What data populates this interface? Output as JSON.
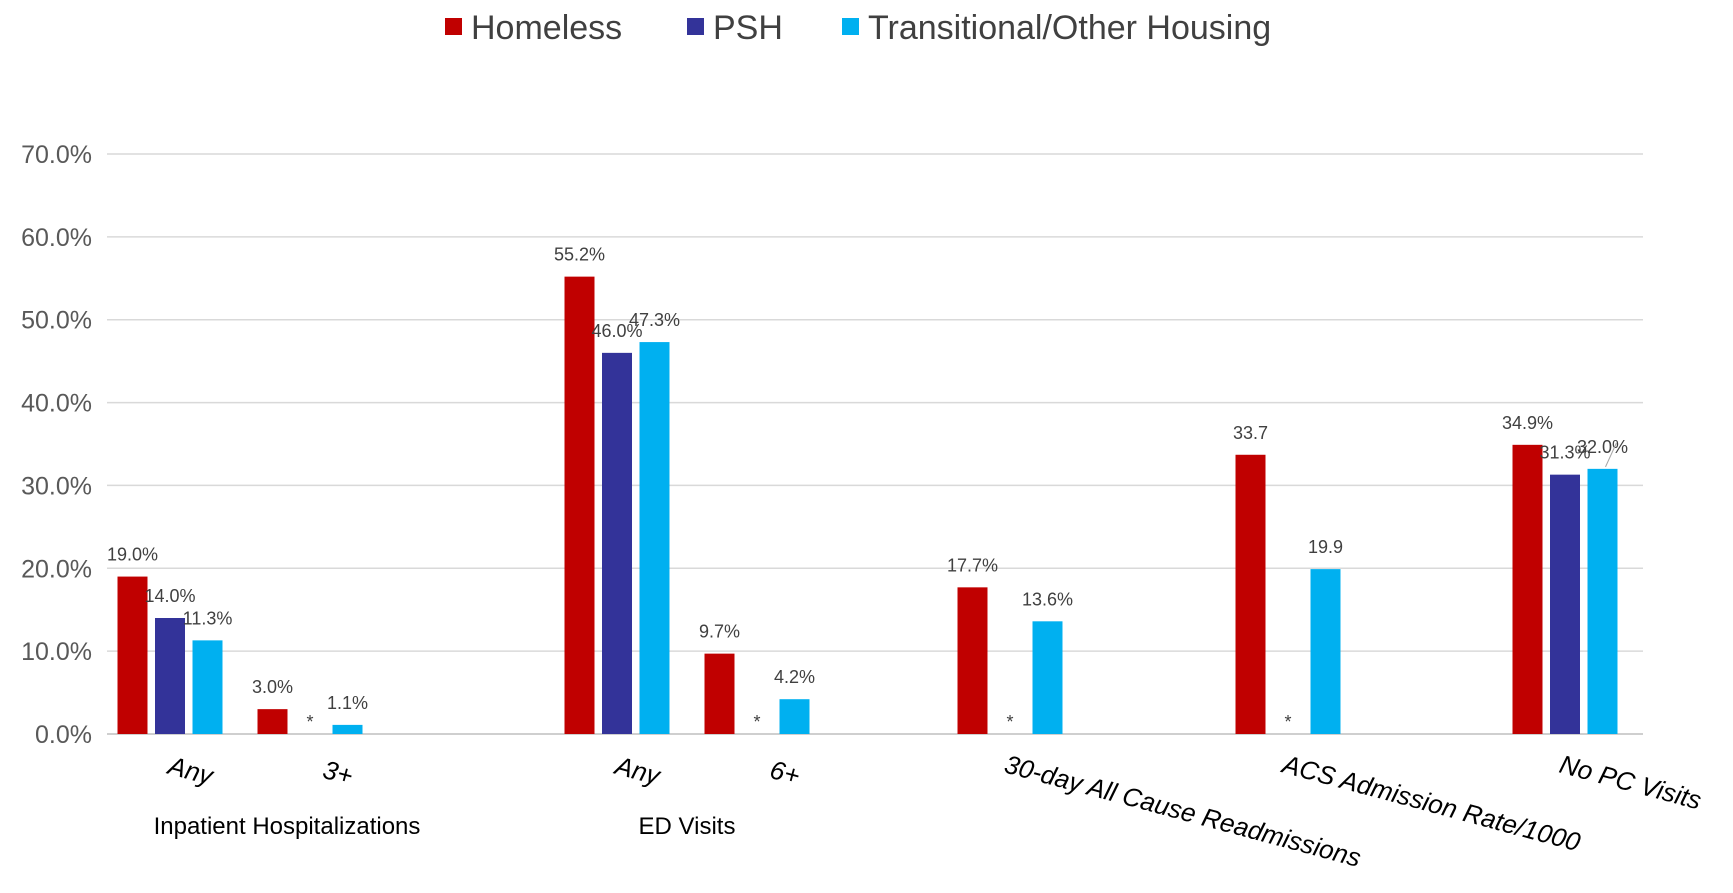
{
  "chart_data": {
    "type": "bar",
    "ylim": [
      0,
      70
    ],
    "yticks": [
      "0.0%",
      "10.0%",
      "20.0%",
      "30.0%",
      "40.0%",
      "50.0%",
      "60.0%",
      "70.0%"
    ],
    "grid": true,
    "legend_position": "top",
    "series": [
      {
        "name": "Homeless",
        "color": "#C00000"
      },
      {
        "name": "PSH",
        "color": "#333399"
      },
      {
        "name": "Transitional/Other Housing",
        "color": "#00B0F0"
      }
    ],
    "categories": [
      {
        "label": "Any",
        "group": "Inpatient Hospitalizations",
        "rotated": false,
        "values": [
          19.0,
          14.0,
          11.3
        ],
        "labels": [
          "19.0%",
          "14.0%",
          "11.3%"
        ]
      },
      {
        "label": "3+",
        "group": "Inpatient Hospitalizations",
        "rotated": false,
        "values": [
          3.0,
          null,
          1.1
        ],
        "labels": [
          "3.0%",
          "*",
          "1.1%"
        ]
      },
      {
        "label": "Any",
        "group": "ED Visits",
        "rotated": false,
        "values": [
          55.2,
          46.0,
          47.3
        ],
        "labels": [
          "55.2%",
          "46.0%",
          "47.3%"
        ]
      },
      {
        "label": "6+",
        "group": "ED Visits",
        "rotated": false,
        "values": [
          9.7,
          null,
          4.2
        ],
        "labels": [
          "9.7%",
          "*",
          "4.2%"
        ]
      },
      {
        "label": "30-day All Cause Readmissions",
        "group": "",
        "rotated": true,
        "values": [
          17.7,
          null,
          13.6
        ],
        "labels": [
          "17.7%",
          "*",
          "13.6%"
        ]
      },
      {
        "label": "ACS Admission Rate/1000",
        "group": "",
        "rotated": true,
        "values": [
          33.7,
          null,
          19.9
        ],
        "labels": [
          "33.7",
          "*",
          "19.9"
        ]
      },
      {
        "label": "No PC Visits",
        "group": "",
        "rotated": true,
        "values": [
          34.9,
          31.3,
          32.0
        ],
        "labels": [
          "34.9%",
          "31.3%",
          "32.0%"
        ]
      }
    ],
    "groups": [
      "Inpatient Hospitalizations",
      "ED Visits"
    ]
  }
}
